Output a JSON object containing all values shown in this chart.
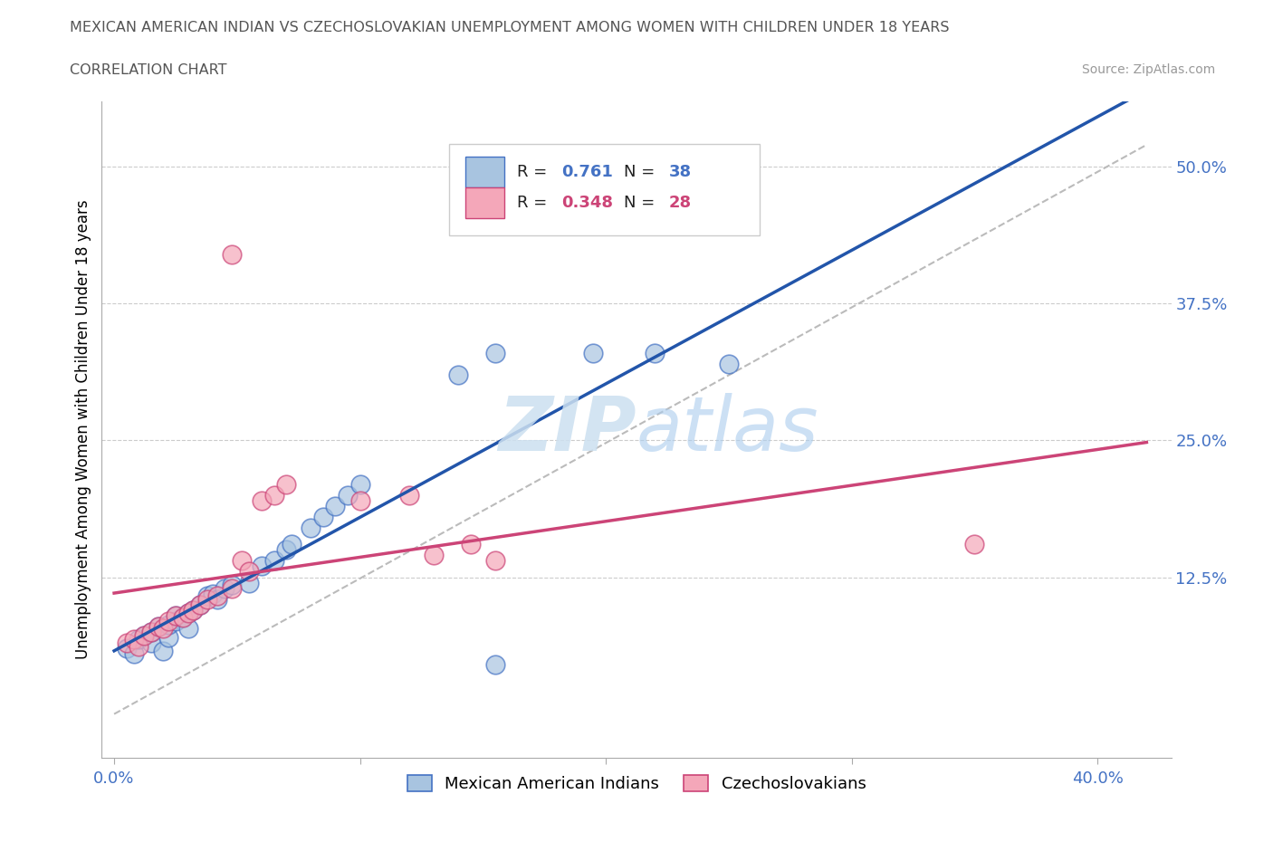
{
  "title": "MEXICAN AMERICAN INDIAN VS CZECHOSLOVAKIAN UNEMPLOYMENT AMONG WOMEN WITH CHILDREN UNDER 18 YEARS",
  "subtitle": "CORRELATION CHART",
  "source": "Source: ZipAtlas.com",
  "tick_color": "#4472c4",
  "ylabel": "Unemployment Among Women with Children Under 18 years",
  "xlim": [
    -0.005,
    0.43
  ],
  "ylim": [
    -0.04,
    0.56
  ],
  "ytick_right_vals": [
    0.125,
    0.25,
    0.375,
    0.5
  ],
  "ytick_right_labels": [
    "12.5%",
    "25.0%",
    "37.5%",
    "50.0%"
  ],
  "blue_fill": "#a8c4e0",
  "blue_edge": "#4472c4",
  "pink_fill": "#f4a7b9",
  "pink_edge": "#cc4477",
  "blue_line_color": "#2255aa",
  "pink_line_color": "#cc4477",
  "watermark_color": "#cce0f0",
  "legend_R_blue": "0.761",
  "legend_N_blue": "38",
  "legend_R_pink": "0.348",
  "legend_N_pink": "28",
  "blue_scatter_x": [
    0.005,
    0.008,
    0.01,
    0.012,
    0.015,
    0.015,
    0.018,
    0.02,
    0.022,
    0.022,
    0.025,
    0.025,
    0.028,
    0.03,
    0.03,
    0.032,
    0.035,
    0.038,
    0.04,
    0.042,
    0.045,
    0.048,
    0.055,
    0.06,
    0.065,
    0.07,
    0.072,
    0.08,
    0.085,
    0.09,
    0.095,
    0.1,
    0.14,
    0.155,
    0.195,
    0.22,
    0.25,
    0.155
  ],
  "blue_scatter_y": [
    0.06,
    0.055,
    0.068,
    0.072,
    0.065,
    0.075,
    0.08,
    0.058,
    0.07,
    0.082,
    0.085,
    0.09,
    0.088,
    0.092,
    0.078,
    0.095,
    0.1,
    0.108,
    0.11,
    0.105,
    0.115,
    0.118,
    0.12,
    0.135,
    0.14,
    0.15,
    0.155,
    0.17,
    0.18,
    0.19,
    0.2,
    0.21,
    0.31,
    0.33,
    0.33,
    0.33,
    0.32,
    0.045
  ],
  "pink_scatter_x": [
    0.005,
    0.008,
    0.01,
    0.012,
    0.015,
    0.018,
    0.02,
    0.022,
    0.025,
    0.028,
    0.03,
    0.032,
    0.035,
    0.038,
    0.042,
    0.048,
    0.052,
    0.055,
    0.06,
    0.065,
    0.07,
    0.1,
    0.12,
    0.13,
    0.145,
    0.155,
    0.35,
    0.048
  ],
  "pink_scatter_y": [
    0.065,
    0.068,
    0.062,
    0.072,
    0.075,
    0.08,
    0.078,
    0.085,
    0.09,
    0.088,
    0.092,
    0.095,
    0.1,
    0.105,
    0.108,
    0.115,
    0.14,
    0.13,
    0.195,
    0.2,
    0.21,
    0.195,
    0.2,
    0.145,
    0.155,
    0.14,
    0.155,
    0.42
  ],
  "grid_color": "#cccccc",
  "blue_trend_x": [
    0.0,
    0.42
  ],
  "pink_trend_x": [
    0.0,
    0.42
  ]
}
